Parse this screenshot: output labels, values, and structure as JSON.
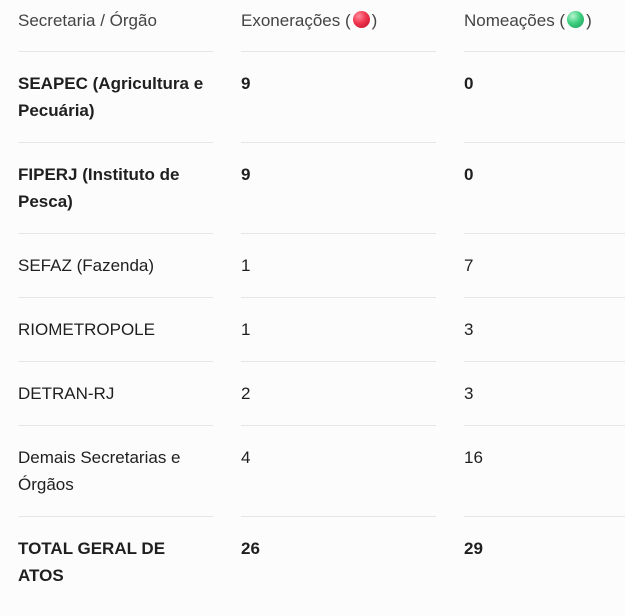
{
  "table": {
    "header": [
      {
        "label": "Secretaria / Órgão"
      },
      {
        "label": "Exonerações (",
        "suffix": ")",
        "icon": "red"
      },
      {
        "label": "Nomeações (",
        "suffix": ")",
        "icon": "green"
      }
    ],
    "rows": [
      {
        "bold": true,
        "cells": [
          "SEAPEC (Agricultura e Pecuária)",
          9,
          0
        ]
      },
      {
        "bold": true,
        "cells": [
          "FIPERJ (Instituto de Pesca)",
          9,
          0
        ]
      },
      {
        "bold": false,
        "cells": [
          "SEFAZ (Fazenda)",
          1,
          7
        ]
      },
      {
        "bold": false,
        "cells": [
          "RIOMETROPOLE",
          1,
          3
        ]
      },
      {
        "bold": false,
        "cells": [
          "DETRAN-RJ",
          2,
          3
        ]
      },
      {
        "bold": false,
        "cells": [
          "Demais Secretarias e Órgãos",
          4,
          16
        ]
      },
      {
        "bold": true,
        "cells": [
          "TOTAL GERAL DE ATOS",
          26,
          29
        ]
      }
    ]
  }
}
